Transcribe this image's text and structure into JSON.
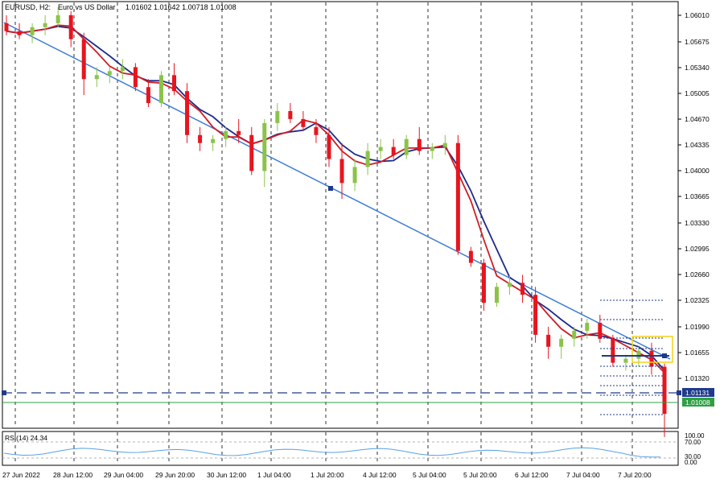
{
  "header": {
    "symbol": "EURUSD, H2:",
    "description": "Euro vs US Dollar",
    "ohlc": "1.01602 1.01642 1.00718 1.01008"
  },
  "price_axis": {
    "labels": [
      "1.06010",
      "1.05675",
      "1.05340",
      "1.05005",
      "1.04670",
      "1.04335",
      "1.04000",
      "1.03665",
      "1.03330",
      "1.02995",
      "1.02660",
      "1.02325",
      "1.01990",
      "1.01655",
      "1.01320"
    ],
    "line_tag": "1.01131",
    "bid_tag": "1.01008"
  },
  "time_axis": {
    "labels": [
      "27 Jun 2022",
      "28 Jun 12:00",
      "29 Jun 04:00",
      "29 Jun 20:00",
      "30 Jun 12:00",
      "1 Jul 04:00",
      "1 Jul 20:00",
      "4 Jul 12:00",
      "5 Jul 04:00",
      "5 Jul 20:00",
      "6 Jul 12:00",
      "7 Jul 04:00",
      "7 Jul 20:00"
    ]
  },
  "rsi": {
    "title": "RSI(14) 24.34",
    "levels": [
      "100.00",
      "70.00",
      "30.00",
      "0.00"
    ]
  },
  "colors": {
    "bull": "#8bc34a",
    "bear": "#e8141e",
    "ma_fast": "#d01c24",
    "ma_slow": "#1c2a8a",
    "trendline": "#3a7bd5",
    "hline": "#1e3a8a",
    "bid_line": "#2ea043",
    "rsi_line": "#5aa0e6",
    "grid": "#000000"
  },
  "chart_data": {
    "type": "candlestick",
    "symbol": "EURUSD",
    "timeframe": "H2",
    "ylim": [
      1.0085,
      1.0615
    ],
    "candles_approx": [
      [
        1.059,
        1.06,
        1.0575,
        1.058
      ],
      [
        1.058,
        1.059,
        1.057,
        1.0575
      ],
      [
        1.0575,
        1.059,
        1.0565,
        1.0585
      ],
      [
        1.0585,
        1.06,
        1.0575,
        1.059
      ],
      [
        1.059,
        1.061,
        1.0585,
        1.06
      ],
      [
        1.06,
        1.0605,
        1.056,
        1.057
      ],
      [
        1.057,
        1.0578,
        1.05,
        1.052
      ],
      [
        1.052,
        1.0535,
        1.051,
        1.0525
      ],
      [
        1.0525,
        1.0535,
        1.0515,
        1.053
      ],
      [
        1.053,
        1.0545,
        1.052,
        1.0535
      ],
      [
        1.0535,
        1.054,
        1.0505,
        1.051
      ],
      [
        1.051,
        1.052,
        1.0485,
        1.049
      ],
      [
        1.049,
        1.053,
        1.0485,
        1.0525
      ],
      [
        1.0525,
        1.054,
        1.05,
        1.0505
      ],
      [
        1.0505,
        1.0515,
        1.044,
        1.045
      ],
      [
        1.045,
        1.046,
        1.043,
        1.044
      ],
      [
        1.044,
        1.045,
        1.043,
        1.0445
      ],
      [
        1.0445,
        1.046,
        1.0435,
        1.0455
      ],
      [
        1.0455,
        1.047,
        1.044,
        1.045
      ],
      [
        1.045,
        1.046,
        1.04,
        1.0405
      ],
      [
        1.0405,
        1.047,
        1.0385,
        1.0465
      ],
      [
        1.0465,
        1.049,
        1.0455,
        1.048
      ],
      [
        1.048,
        1.049,
        1.0465,
        1.047
      ],
      [
        1.047,
        1.048,
        1.0455,
        1.046
      ],
      [
        1.046,
        1.047,
        1.044,
        1.045
      ],
      [
        1.045,
        1.046,
        1.041,
        1.042
      ],
      [
        1.042,
        1.044,
        1.037,
        1.039
      ],
      [
        1.039,
        1.042,
        1.038,
        1.041
      ],
      [
        1.041,
        1.044,
        1.04,
        1.043
      ],
      [
        1.043,
        1.0445,
        1.042,
        1.0435
      ],
      [
        1.0435,
        1.0445,
        1.042,
        1.0425
      ],
      [
        1.0425,
        1.045,
        1.042,
        1.0445
      ],
      [
        1.0445,
        1.046,
        1.0425,
        1.043
      ],
      [
        1.043,
        1.044,
        1.042,
        1.0435
      ],
      [
        1.0435,
        1.045,
        1.0425,
        1.044
      ],
      [
        1.044,
        1.045,
        1.03,
        1.0305
      ],
      [
        1.0305,
        1.031,
        1.0285,
        1.029
      ],
      [
        1.029,
        1.0295,
        1.023,
        1.024
      ],
      [
        1.024,
        1.0265,
        1.0235,
        1.026
      ],
      [
        1.026,
        1.0275,
        1.025,
        1.0265
      ],
      [
        1.0265,
        1.0275,
        1.024,
        1.025
      ],
      [
        1.025,
        1.026,
        1.019,
        1.02
      ],
      [
        1.02,
        1.021,
        1.017,
        1.0185
      ],
      [
        1.0185,
        1.02,
        1.017,
        1.0195
      ],
      [
        1.0195,
        1.021,
        1.0185,
        1.0205
      ],
      [
        1.0205,
        1.022,
        1.0195,
        1.0215
      ],
      [
        1.0215,
        1.0225,
        1.019,
        1.0195
      ],
      [
        1.0195,
        1.02,
        1.016,
        1.0165
      ],
      [
        1.0165,
        1.0175,
        1.0155,
        1.017
      ],
      [
        1.017,
        1.0185,
        1.016,
        1.018
      ],
      [
        1.018,
        1.019,
        1.015,
        1.016
      ],
      [
        1.016,
        1.0164,
        1.0072,
        1.0101
      ]
    ],
    "indicator": {
      "name": "RSI(14)",
      "last": 24.34,
      "levels": [
        100,
        70,
        30,
        0
      ]
    }
  }
}
